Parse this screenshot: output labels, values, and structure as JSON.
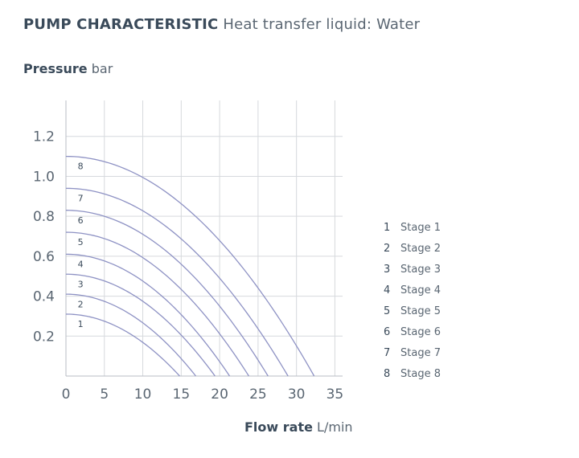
{
  "header": {
    "title_strong": "PUMP CHARACTERISTIC",
    "title_light": "Heat transfer liquid: Water"
  },
  "chart_data": {
    "type": "line",
    "ylabel_strong": "Pressure",
    "ylabel_unit": "bar",
    "xlabel_strong": "Flow rate",
    "xlabel_unit": "L/min",
    "xlim": [
      0,
      36
    ],
    "ylim": [
      0,
      1.38
    ],
    "x_ticks": [
      "0",
      "5",
      "10",
      "15",
      "20",
      "25",
      "30",
      "35"
    ],
    "y_ticks": [
      "0.2",
      "0.4",
      "0.6",
      "0.8",
      "1.0",
      "1.2"
    ],
    "grid": true,
    "series": [
      {
        "name": "Stage 1",
        "label": "1",
        "shut_off_pressure": 0.31,
        "max_flow": 14.8
      },
      {
        "name": "Stage 2",
        "label": "2",
        "shut_off_pressure": 0.41,
        "max_flow": 16.9
      },
      {
        "name": "Stage 3",
        "label": "3",
        "shut_off_pressure": 0.51,
        "max_flow": 19.4
      },
      {
        "name": "Stage 4",
        "label": "4",
        "shut_off_pressure": 0.61,
        "max_flow": 21.3
      },
      {
        "name": "Stage 5",
        "label": "5",
        "shut_off_pressure": 0.72,
        "max_flow": 23.8
      },
      {
        "name": "Stage 6",
        "label": "6",
        "shut_off_pressure": 0.83,
        "max_flow": 26.3
      },
      {
        "name": "Stage 7",
        "label": "7",
        "shut_off_pressure": 0.94,
        "max_flow": 28.9
      },
      {
        "name": "Stage 8",
        "label": "8",
        "shut_off_pressure": 1.1,
        "max_flow": 32.3
      }
    ],
    "legend_position": "right",
    "line_color": "#8e92c4",
    "grid_color": "#d6d9dd"
  }
}
